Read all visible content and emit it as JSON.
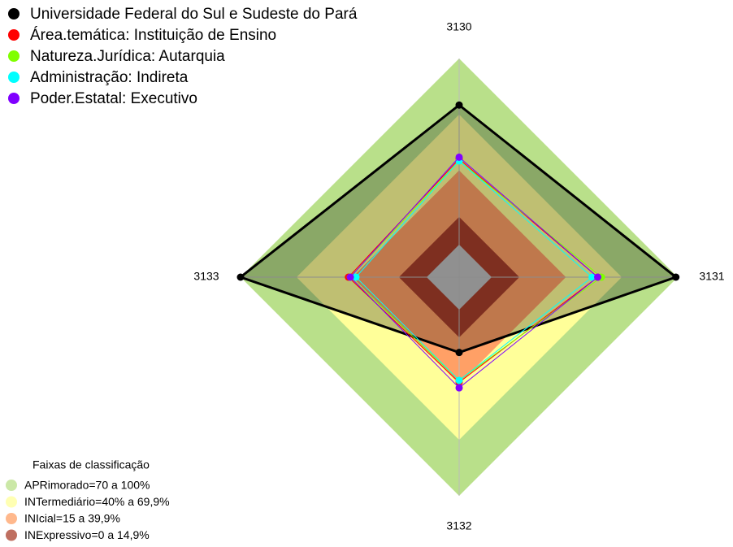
{
  "chart_data": {
    "type": "radar",
    "categories": [
      "3130",
      "3131",
      "3132",
      "3133"
    ],
    "rlim": [
      0,
      100
    ],
    "series": [
      {
        "name": "Universidade Federal do Sul e Sudeste do Pará",
        "color": "#000000",
        "values": [
          75,
          99,
          23,
          100
        ]
      },
      {
        "name": "Área.temática: Instituição de Ensino",
        "color": "#ff0000",
        "values": [
          46,
          57,
          39,
          42
        ]
      },
      {
        "name": "Natureza.Jurídica: Autarquia",
        "color": "#80ff00",
        "values": [
          45,
          59,
          38,
          41
        ]
      },
      {
        "name": "Administração: Indireta",
        "color": "#00ffff",
        "values": [
          45,
          54,
          38,
          38
        ]
      },
      {
        "name": "Poder.Estatal: Executivo",
        "color": "#8000ff",
        "values": [
          47,
          57,
          42,
          41
        ]
      }
    ],
    "bands_title": "Faixas de classificação",
    "bands": [
      {
        "name": "APRimorado=70 a 100%",
        "color": "#b9e08a",
        "from": 70,
        "to": 100
      },
      {
        "name": "INTermediário=40% a 69,9%",
        "color": "#ffff99",
        "from": 40,
        "to": 69.9
      },
      {
        "name": "INIcial=15 a 39,9%",
        "color": "#ffa066",
        "from": 15,
        "to": 39.9
      },
      {
        "name": "INExpressivo=0 a 14,9%",
        "color": "#a93f2b",
        "from": 0,
        "to": 14.9
      }
    ]
  }
}
